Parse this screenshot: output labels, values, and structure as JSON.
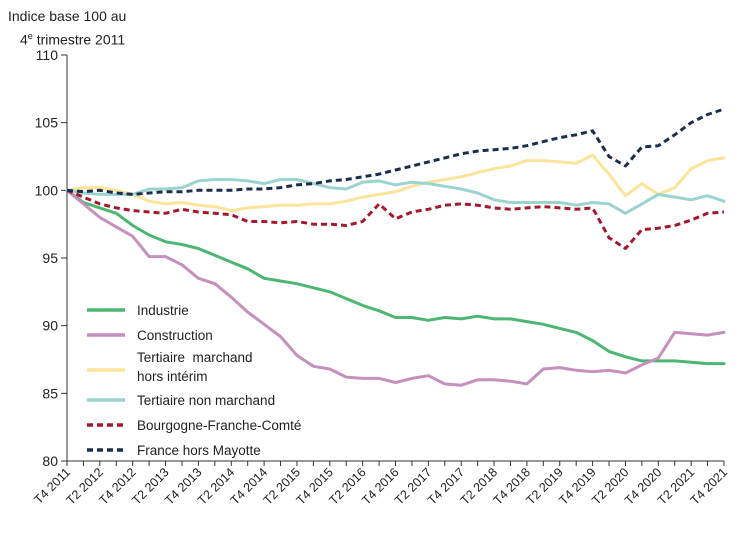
{
  "chart_data": {
    "type": "line",
    "ylabel_line1": "Indice base 100 au",
    "ylabel_line2_num": "4",
    "ylabel_line2_sup": "e",
    "ylabel_line2_rest": " trimestre 2011",
    "ylim": [
      80,
      110
    ],
    "yticks": [
      "80",
      "85",
      "90",
      "95",
      "100",
      "105",
      "110"
    ],
    "grid": false,
    "legend_position": "bottom-left",
    "x": [
      "T4 2011",
      "T1 2012",
      "T2 2012",
      "T3 2012",
      "T4 2012",
      "T1 2013",
      "T2 2013",
      "T3 2013",
      "T4 2013",
      "T1 2014",
      "T2 2014",
      "T3 2014",
      "T4 2014",
      "T1 2015",
      "T2 2015",
      "T3 2015",
      "T4 2015",
      "T1 2016",
      "T2 2016",
      "T3 2016",
      "T4 2016",
      "T1 2017",
      "T2 2017",
      "T3 2017",
      "T4 2017",
      "T1 2018",
      "T2 2018",
      "T3 2018",
      "T4 2018",
      "T1 2019",
      "T2 2019",
      "T3 2019",
      "T4 2019",
      "T1 2020",
      "T2 2020",
      "T3 2020",
      "T4 2020",
      "T1 2021",
      "T2 2021",
      "T3 2021",
      "T4 2021"
    ],
    "xtick_labels": [
      "T4 2011",
      "T2 2012",
      "T4 2012",
      "T2 2013",
      "T4 2013",
      "T2 2014",
      "T4 2014",
      "T2 2015",
      "T4 2015",
      "T2 2016",
      "T4 2016",
      "T2 2017",
      "T4 2017",
      "T2 2018",
      "T4 2018",
      "T2 2019",
      "T4 2019",
      "T2 2020",
      "T4 2020",
      "T2 2021",
      "T4 2021"
    ],
    "series": [
      {
        "name": "Industrie",
        "color": "#4cb672",
        "dash": false,
        "values": [
          100,
          99.1,
          98.7,
          98.3,
          97.4,
          96.7,
          96.2,
          96.0,
          95.7,
          95.2,
          94.7,
          94.2,
          93.5,
          93.3,
          93.1,
          92.8,
          92.5,
          92.0,
          91.5,
          91.1,
          90.6,
          90.6,
          90.4,
          90.6,
          90.5,
          90.7,
          90.5,
          90.5,
          90.3,
          90.1,
          89.8,
          89.5,
          88.9,
          88.1,
          87.7,
          87.4,
          87.4,
          87.4,
          87.3,
          87.2,
          87.2
        ]
      },
      {
        "name": "Construction",
        "color": "#c58fbe",
        "dash": false,
        "values": [
          100,
          99.0,
          98.0,
          97.3,
          96.6,
          95.1,
          95.1,
          94.5,
          93.5,
          93.1,
          92.1,
          91.0,
          90.1,
          89.2,
          87.8,
          87.0,
          86.8,
          86.2,
          86.1,
          86.1,
          85.8,
          86.1,
          86.3,
          85.7,
          85.6,
          86.0,
          86.0,
          85.9,
          85.7,
          86.8,
          86.9,
          86.7,
          86.6,
          86.7,
          86.5,
          87.1,
          87.6,
          89.5,
          89.4,
          89.3,
          89.5
        ]
      },
      {
        "name": "Tertiaire  marchand hors intérim",
        "name_line1": "Tertiaire  marchand",
        "name_line2": "hors intérim",
        "color": "#fde49a",
        "dash": false,
        "values": [
          100,
          100.2,
          100.2,
          100.0,
          99.7,
          99.2,
          99.0,
          99.1,
          98.9,
          98.8,
          98.5,
          98.7,
          98.8,
          98.9,
          98.9,
          99.0,
          99.0,
          99.2,
          99.5,
          99.7,
          99.9,
          100.3,
          100.6,
          100.8,
          101.0,
          101.3,
          101.6,
          101.8,
          102.2,
          102.2,
          102.1,
          102.0,
          102.6,
          101.2,
          99.6,
          100.5,
          99.7,
          100.2,
          101.6,
          102.2,
          102.4
        ]
      },
      {
        "name": "Tertiaire non marchand",
        "color": "#9bd4cf",
        "dash": false,
        "values": [
          100,
          99.8,
          99.7,
          99.7,
          99.7,
          100.1,
          100.1,
          100.2,
          100.7,
          100.8,
          100.8,
          100.7,
          100.5,
          100.8,
          100.8,
          100.5,
          100.2,
          100.1,
          100.6,
          100.7,
          100.4,
          100.6,
          100.5,
          100.3,
          100.1,
          99.8,
          99.3,
          99.1,
          99.1,
          99.1,
          99.1,
          98.9,
          99.1,
          99.0,
          98.3,
          99.0,
          99.7,
          99.5,
          99.3,
          99.6,
          99.2
        ]
      },
      {
        "name": "Bourgogne-Franche-Comté",
        "color": "#a3192d",
        "dash": true,
        "values": [
          100,
          99.5,
          99.0,
          98.7,
          98.5,
          98.4,
          98.3,
          98.6,
          98.4,
          98.3,
          98.2,
          97.7,
          97.7,
          97.6,
          97.7,
          97.5,
          97.5,
          97.4,
          97.7,
          99.0,
          97.9,
          98.4,
          98.6,
          98.9,
          99.0,
          98.9,
          98.7,
          98.6,
          98.7,
          98.8,
          98.7,
          98.6,
          98.7,
          96.5,
          95.7,
          97.1,
          97.2,
          97.4,
          97.8,
          98.3,
          98.4
        ]
      },
      {
        "name": "France hors Mayotte",
        "color": "#1c2e4e",
        "dash": true,
        "values": [
          100,
          99.9,
          100.0,
          99.8,
          99.7,
          99.8,
          99.9,
          99.9,
          100.0,
          100.0,
          100.0,
          100.1,
          100.1,
          100.2,
          100.4,
          100.5,
          100.7,
          100.8,
          101.0,
          101.2,
          101.5,
          101.8,
          102.1,
          102.4,
          102.7,
          102.9,
          103.0,
          103.1,
          103.3,
          103.6,
          103.9,
          104.1,
          104.4,
          102.5,
          101.8,
          103.2,
          103.3,
          104.1,
          105.0,
          105.6,
          106.0
        ]
      }
    ]
  }
}
